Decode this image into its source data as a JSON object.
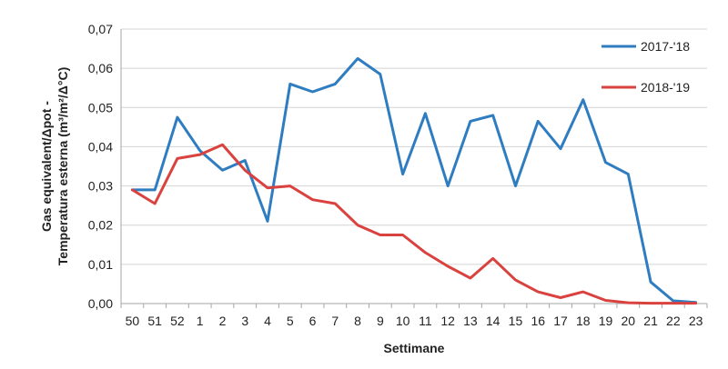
{
  "chart_data": {
    "type": "line",
    "title": "",
    "xlabel": "Settimane",
    "ylabel_lines": [
      "Gas equivalent/Δpot -",
      "Temperatura esterna (m³/m²/Δ°C)"
    ],
    "categories": [
      "50",
      "51",
      "52",
      "1",
      "2",
      "3",
      "4",
      "5",
      "6",
      "7",
      "8",
      "9",
      "10",
      "11",
      "12",
      "13",
      "14",
      "15",
      "16",
      "17",
      "18",
      "19",
      "20",
      "21",
      "22",
      "23"
    ],
    "ylim": [
      0,
      0.07
    ],
    "yticks": [
      "0,00",
      "0,01",
      "0,02",
      "0,03",
      "0,04",
      "0,05",
      "0,06",
      "0,07"
    ],
    "ytick_values": [
      0,
      0.01,
      0.02,
      0.03,
      0.04,
      0.05,
      0.06,
      0.07
    ],
    "grid": "horizontal",
    "legend_position": "top-right",
    "series": [
      {
        "name": "2017-'18",
        "color": "#2f7dc1",
        "values": [
          0.029,
          0.029,
          0.0475,
          0.039,
          0.034,
          0.0365,
          0.021,
          0.056,
          0.054,
          0.056,
          0.0625,
          0.0585,
          0.033,
          0.0485,
          0.03,
          0.0465,
          0.048,
          0.03,
          0.0465,
          0.0395,
          0.052,
          0.036,
          0.033,
          0.0055,
          0.0007,
          0.0003
        ]
      },
      {
        "name": "2018-'19",
        "color": "#d9423e",
        "values": [
          0.029,
          0.0255,
          0.037,
          0.038,
          0.0405,
          0.034,
          0.0295,
          0.03,
          0.0265,
          0.0255,
          0.02,
          0.0175,
          0.0175,
          0.013,
          0.0095,
          0.0065,
          0.0115,
          0.006,
          0.003,
          0.0015,
          0.003,
          0.0008,
          0.0002,
          0.0001,
          0.0001,
          0.0001
        ]
      }
    ]
  }
}
